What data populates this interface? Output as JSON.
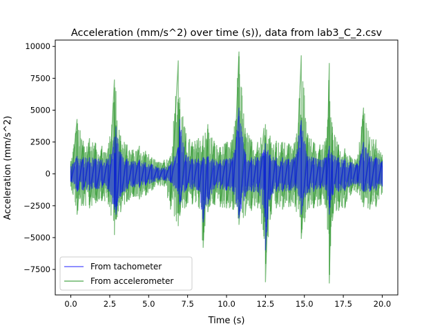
{
  "chart_data": {
    "type": "line",
    "title": "Acceleration (mm/s^2) over time (s)), data from lab3_C_2.csv",
    "xlabel": "Time (s)",
    "ylabel": "Acceleration (mm/s^2)",
    "xlim": [
      -1.0,
      21.0
    ],
    "ylim": [
      -9500,
      10500
    ],
    "xticks": [
      0.0,
      2.5,
      5.0,
      7.5,
      10.0,
      12.5,
      15.0,
      17.5,
      20.0
    ],
    "xtick_labels": [
      "0.0",
      "2.5",
      "5.0",
      "7.5",
      "10.0",
      "12.5",
      "15.0",
      "17.5",
      "20.0"
    ],
    "yticks": [
      -7500,
      -5000,
      -2500,
      0,
      2500,
      5000,
      7500,
      10000
    ],
    "ytick_labels": [
      "−7500",
      "−5000",
      "−2500",
      "0",
      "2500",
      "5000",
      "7500",
      "10000"
    ],
    "grid": false,
    "legend_position": "lower left",
    "series": [
      {
        "name": "From tachometer",
        "color": "#0000ff",
        "opacity": 0.5,
        "x": [
          0.0,
          0.4,
          0.8,
          1.2,
          1.6,
          2.0,
          2.4,
          2.8,
          2.9,
          3.2,
          3.6,
          4.0,
          4.4,
          4.8,
          5.2,
          5.6,
          6.0,
          6.4,
          6.9,
          7.0,
          7.4,
          7.8,
          8.2,
          8.5,
          8.8,
          9.2,
          9.6,
          10.0,
          10.4,
          10.8,
          11.2,
          11.6,
          12.0,
          12.4,
          12.5,
          12.8,
          13.2,
          13.6,
          14.0,
          14.4,
          14.8,
          15.2,
          15.6,
          16.0,
          16.4,
          16.6,
          16.8,
          17.2,
          17.6,
          18.0,
          18.4,
          18.8,
          19.2,
          19.6,
          20.0
        ],
        "upper": [
          600,
          1400,
          1300,
          1300,
          1200,
          1100,
          1200,
          2900,
          3700,
          1700,
          1200,
          1000,
          1100,
          900,
          800,
          500,
          500,
          700,
          2100,
          4300,
          1500,
          1200,
          1200,
          1300,
          1400,
          1100,
          1100,
          1200,
          1300,
          5200,
          1700,
          1300,
          1300,
          1900,
          2400,
          1500,
          1300,
          1300,
          1200,
          1300,
          4200,
          1400,
          1300,
          1100,
          1300,
          2200,
          1500,
          1300,
          1200,
          900,
          800,
          2500,
          1400,
          1300,
          1000
        ],
        "lower": [
          -600,
          -1400,
          -1300,
          -1300,
          -1200,
          -1100,
          -1200,
          -2800,
          -3200,
          -1800,
          -1200,
          -1000,
          -1100,
          -900,
          -700,
          -500,
          -500,
          -700,
          -1600,
          -2400,
          -1300,
          -1200,
          -1300,
          -3800,
          -2400,
          -1200,
          -1200,
          -1300,
          -1400,
          -3500,
          -1800,
          -1400,
          -1400,
          -2700,
          -6000,
          -2000,
          -1400,
          -1400,
          -1300,
          -1300,
          -3200,
          -1500,
          -1400,
          -1200,
          -1300,
          -3200,
          -1700,
          -1400,
          -1300,
          -900,
          -800,
          -1400,
          -1400,
          -1300,
          -1000
        ]
      },
      {
        "name": "From accelerometer",
        "color": "#008000",
        "opacity": 0.5,
        "x": [
          0.0,
          0.4,
          0.8,
          1.2,
          1.6,
          2.0,
          2.4,
          2.8,
          2.9,
          3.2,
          3.6,
          4.0,
          4.4,
          4.8,
          5.2,
          5.6,
          6.0,
          6.4,
          6.9,
          7.0,
          7.4,
          7.8,
          8.2,
          8.5,
          8.8,
          9.2,
          9.6,
          10.0,
          10.4,
          10.8,
          11.2,
          11.6,
          12.0,
          12.4,
          12.5,
          12.8,
          13.2,
          13.6,
          14.0,
          14.4,
          14.8,
          15.2,
          15.6,
          16.0,
          16.4,
          16.6,
          16.8,
          17.2,
          17.6,
          18.0,
          18.4,
          18.8,
          19.2,
          19.6,
          20.0
        ],
        "upper": [
          1000,
          4300,
          2600,
          2800,
          2400,
          2200,
          2000,
          7400,
          6500,
          3000,
          2300,
          1900,
          2200,
          1800,
          1300,
          900,
          1100,
          1400,
          8900,
          6000,
          3200,
          2500,
          2800,
          3000,
          3900,
          2600,
          2100,
          2500,
          2700,
          9600,
          3600,
          2700,
          2500,
          3600,
          3900,
          3000,
          2600,
          2500,
          2400,
          2500,
          9300,
          3200,
          2500,
          2300,
          2800,
          8700,
          3700,
          2300,
          2000,
          1300,
          1200,
          5200,
          2900,
          2700,
          1500
        ],
        "lower": [
          -1000,
          -3200,
          -2500,
          -2700,
          -2300,
          -2100,
          -2400,
          -4800,
          -3600,
          -3000,
          -2200,
          -1800,
          -2000,
          -1700,
          -1300,
          -900,
          -1000,
          -2800,
          -4100,
          -3300,
          -2600,
          -2400,
          -2600,
          -5800,
          -3000,
          -2400,
          -2600,
          -2700,
          -2800,
          -4000,
          -3300,
          -2900,
          -2700,
          -4900,
          -8500,
          -3600,
          -2700,
          -2800,
          -2600,
          -2600,
          -5100,
          -2800,
          -2700,
          -2500,
          -2700,
          -8600,
          -3700,
          -2900,
          -2700,
          -1600,
          -1500,
          -2600,
          -2800,
          -2600,
          -1500
        ]
      }
    ]
  }
}
